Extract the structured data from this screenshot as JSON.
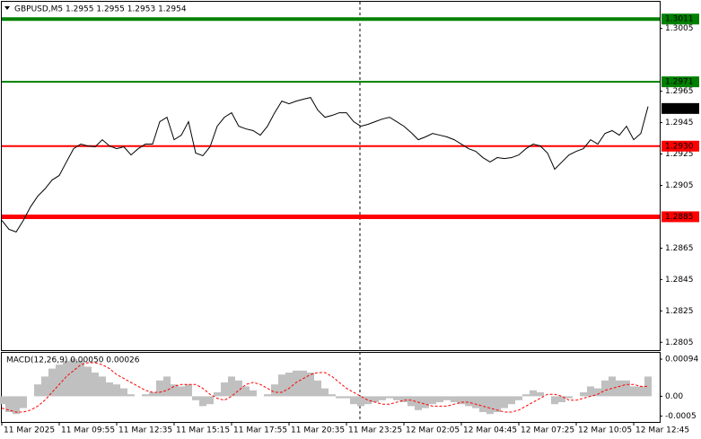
{
  "chart_data": {
    "type": "line",
    "title": "GBPUSD,M5  1.2955 1.2955 1.2953 1.2954",
    "categories": [
      "11 Mar 2025",
      null,
      null,
      null,
      null,
      null,
      null,
      null,
      "11 Mar 09:55",
      null,
      null,
      null,
      null,
      null,
      null,
      null,
      "11 Mar 12:35",
      null,
      null,
      null,
      null,
      null,
      null,
      null,
      "11 Mar 15:15",
      null,
      null,
      null,
      null,
      null,
      null,
      null,
      "11 Mar 17:55",
      null,
      null,
      null,
      null,
      null,
      null,
      null,
      "11 Mar 20:35",
      null,
      null,
      null,
      null,
      null,
      null,
      null,
      "11 Mar 23:25",
      null,
      null,
      null,
      null,
      null,
      null,
      null,
      "12 Mar 02:05",
      null,
      null,
      null,
      null,
      null,
      null,
      null,
      "12 Mar 04:45",
      null,
      null,
      null,
      null,
      null,
      null,
      null,
      "12 Mar 07:25",
      null,
      null,
      null,
      null,
      null,
      null,
      null,
      "12 Mar 10:05",
      null,
      null,
      null,
      null,
      null,
      null,
      null,
      "12 Mar 12:45",
      null,
      null
    ],
    "series": [
      {
        "name": "GBPUSD",
        "color": "#000000",
        "values": [
          1.28827,
          1.2877,
          1.28753,
          1.28827,
          1.28913,
          1.28981,
          1.29027,
          1.29084,
          1.29113,
          1.29199,
          1.29284,
          1.29313,
          1.29301,
          1.29296,
          1.29341,
          1.29301,
          1.29284,
          1.29296,
          1.29244,
          1.29284,
          1.29313,
          1.29313,
          1.29456,
          1.29484,
          1.29341,
          1.2937,
          1.29456,
          1.29256,
          1.29239,
          1.29296,
          1.29427,
          1.29484,
          1.29513,
          1.29427,
          1.2941,
          1.29399,
          1.2937,
          1.29427,
          1.29513,
          1.29587,
          1.2957,
          1.29587,
          1.29599,
          1.2961,
          1.2953,
          1.29484,
          1.29496,
          1.29513,
          1.29513,
          1.29456,
          1.29427,
          1.29439,
          1.29456,
          1.29473,
          1.29484,
          1.29456,
          1.29427,
          1.29387,
          1.29341,
          1.29359,
          1.29381,
          1.2937,
          1.29359,
          1.29341,
          1.29313,
          1.29284,
          1.29267,
          1.29227,
          1.29199,
          1.29227,
          1.29221,
          1.29227,
          1.29244,
          1.29284,
          1.29313,
          1.29301,
          1.29256,
          1.29153,
          1.29199,
          1.29244,
          1.29267,
          1.29284,
          1.29341,
          1.29313,
          1.29381,
          1.29399,
          1.2937,
          1.29427,
          1.29341,
          1.29381,
          1.29553
        ]
      }
    ],
    "ylim": [
      1.28,
      1.3022
    ],
    "yticks": [
      1.3005,
      1.2965,
      1.2945,
      1.2925,
      1.2905,
      1.2865,
      1.2845,
      1.2825,
      1.2805
    ],
    "levels": [
      {
        "value": 1.3011,
        "color": "#008000",
        "width": 4
      },
      {
        "value": 1.2971,
        "color": "#008000",
        "width": 2
      },
      {
        "value": 1.2954,
        "color": "#000000",
        "width": 0
      },
      {
        "value": {
          "value": 1.293,
          "label": "1.2930"
        },
        "color": "#ff0000",
        "width": 2
      },
      {
        "value": 1.2885,
        "color": "#ff0000",
        "width": 5
      }
    ],
    "macd": {
      "title": "MACD(12,26,9) 0.00050 0.00026",
      "ylim": [
        -0.00065,
        0.0011
      ],
      "yticks": [
        0.00094,
        {
          "value": 0,
          "label": "0.00"
        },
        -0.0005
      ],
      "histogram": {
        "color": "#c0c0c0",
        "values": [
          -0.0002,
          -0.0004,
          -0.00045,
          -0.0003,
          0,
          0.0003,
          0.0005,
          0.0007,
          0.0008,
          0.0009,
          0.00095,
          0.0009,
          0.00075,
          0.0006,
          0.0005,
          0.00035,
          0.0003,
          0.0002,
          5e-05,
          0,
          5e-05,
          0.0001,
          0.0004,
          0.0005,
          0.0003,
          0.00025,
          0.0003,
          -0.0001,
          -0.00025,
          -0.0002,
          0.0001,
          0.00035,
          0.0005,
          0.0004,
          0.00025,
          0.00015,
          0,
          5e-05,
          0.0003,
          0.00055,
          0.0006,
          0.00065,
          0.00065,
          0.0006,
          0.0004,
          0.0002,
          5e-05,
          -5e-05,
          -5e-05,
          -0.0002,
          -0.00025,
          -0.0002,
          -0.00015,
          -0.0001,
          -5e-05,
          -0.0001,
          -0.00015,
          -0.00025,
          -0.00035,
          -0.0003,
          -0.0002,
          -0.00015,
          -0.0001,
          -0.00015,
          -0.0002,
          -0.00025,
          -0.0003,
          -0.0004,
          -0.00045,
          -0.0004,
          -0.0003,
          -0.0002,
          -0.0001,
          5e-05,
          0.00015,
          0.0001,
          0,
          -0.0002,
          -0.00015,
          -5e-05,
          0,
          0.0001,
          0.00025,
          0.0002,
          0.0004,
          0.0005,
          0.0004,
          0.0004,
          0.00025,
          0.00025,
          0.0005
        ]
      },
      "signal": {
        "color": "#ff0000",
        "values": [
          -0.0003,
          -0.00035,
          -0.0004,
          -0.0004,
          -0.00035,
          -0.00025,
          -0.0001,
          0.0001,
          0.0003,
          0.0005,
          0.00065,
          0.0008,
          0.00085,
          0.00085,
          0.0008,
          0.0007,
          0.00055,
          0.00045,
          0.00035,
          0.00025,
          0.00015,
          0.0001,
          0.0001,
          0.00015,
          0.00025,
          0.0003,
          0.0003,
          0.0003,
          0.0002,
          5e-05,
          -5e-05,
          -0.0001,
          0,
          0.00015,
          0.0003,
          0.00035,
          0.0003,
          0.0002,
          0.0001,
          0.0001,
          0.0002,
          0.00035,
          0.00045,
          0.00055,
          0.0006,
          0.0006,
          0.0005,
          0.00035,
          0.0002,
          0.0001,
          0,
          -0.0001,
          -0.00015,
          -0.0002,
          -0.0002,
          -0.00015,
          -0.0001,
          -0.0001,
          -0.00015,
          -0.0002,
          -0.00025,
          -0.00025,
          -0.00025,
          -0.0002,
          -0.00015,
          -0.00015,
          -0.0002,
          -0.00025,
          -0.0003,
          -0.00035,
          -0.0004,
          -0.0004,
          -0.00035,
          -0.00025,
          -0.00015,
          -5e-05,
          5e-05,
          5e-05,
          0,
          -0.0001,
          -0.0001,
          -5e-05,
          0,
          5e-05,
          0.00015,
          0.0002,
          0.00025,
          0.0003,
          0.0003,
          0.00025,
          0.00025
        ]
      }
    }
  }
}
